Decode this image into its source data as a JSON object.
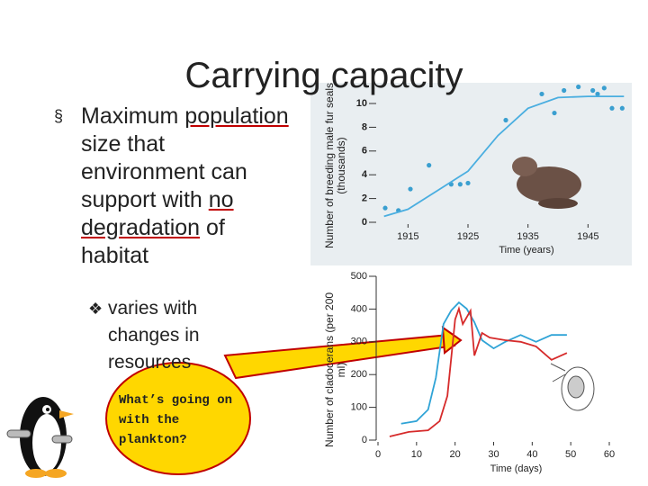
{
  "title": "Carrying capacity",
  "bullet": {
    "parts": [
      "Maximum ",
      "population",
      " size that environment can support with ",
      "no degradation",
      " of habitat"
    ],
    "underlined": [
      1,
      3
    ]
  },
  "sub_bullet": "varies with changes in resources",
  "callout": "What’s going on with the plankton?",
  "chart_data": [
    {
      "type": "scatter",
      "ylabel": "Number of breeding male fur seals (thousands)",
      "xlabel": "Time (years)",
      "xlim": [
        1910,
        1952
      ],
      "ylim": [
        0,
        11.5
      ],
      "xticks": [
        1915,
        1925,
        1935,
        1945
      ],
      "yticks": [
        0,
        2,
        4,
        6,
        8,
        10
      ],
      "series": [
        {
          "mode": "markers",
          "color": "#3a9fd0",
          "x": [
            1911.2,
            1913.4,
            1915.4,
            1918.5,
            1922.2,
            1923.7,
            1925,
            1931.3,
            1937.3,
            1939.4,
            1941,
            1943.4,
            1945.8,
            1946.6,
            1947.7,
            1949,
            1950.7
          ],
          "values": [
            1.2,
            1.0,
            2.8,
            4.8,
            3.2,
            3.2,
            3.3,
            8.6,
            10.8,
            9.2,
            11.1,
            11.4,
            11.1,
            10.8,
            11.3,
            9.6,
            9.6
          ]
        },
        {
          "mode": "line",
          "color": "#4aaee0",
          "x": [
            1911,
            1915,
            1920,
            1925,
            1930,
            1935,
            1940,
            1945,
            1951
          ],
          "values": [
            0.5,
            1.1,
            2.7,
            4.3,
            7.3,
            9.6,
            10.5,
            10.6,
            10.6
          ]
        }
      ]
    },
    {
      "type": "line",
      "ylabel": "Number of cladocerans (per 200 ml)",
      "xlabel": "Time (days)",
      "xlim": [
        0,
        60
      ],
      "ylim": [
        0,
        500
      ],
      "xticks": [
        0,
        10,
        20,
        30,
        40,
        50,
        60
      ],
      "yticks": [
        0,
        100,
        200,
        300,
        400,
        500
      ],
      "series": [
        {
          "color": "#2fa3d6",
          "x": [
            6,
            10,
            13,
            15,
            17,
            19,
            21,
            23,
            25,
            27,
            30,
            33,
            37,
            41,
            45,
            49
          ],
          "values": [
            50,
            58,
            93,
            190,
            354,
            396,
            420,
            401,
            360,
            305,
            280,
            300,
            321,
            300,
            321,
            321
          ]
        },
        {
          "color": "#d62b2b",
          "x": [
            3,
            8,
            13,
            16,
            18,
            20,
            21,
            22,
            24,
            25,
            27,
            29,
            33,
            37,
            41,
            45,
            49
          ],
          "values": [
            11,
            25,
            30,
            58,
            135,
            368,
            401,
            354,
            395,
            258,
            327,
            313,
            305,
            300,
            286,
            245,
            266
          ]
        }
      ]
    }
  ]
}
